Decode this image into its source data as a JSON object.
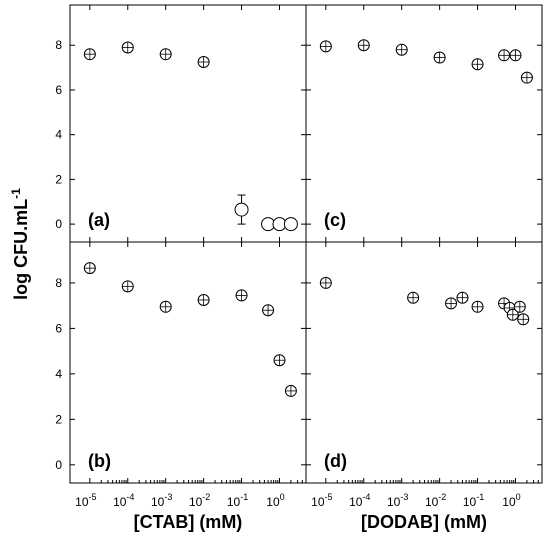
{
  "chart_data": {
    "type": "scatter",
    "ylabel": "log CFU.mL",
    "ylabel_superscript": "-1",
    "y_ticks": [
      0,
      2,
      4,
      6,
      8
    ],
    "ylim": [
      -0.8,
      9.8
    ],
    "xscale": "log",
    "xlim": [
      3e-06,
      5
    ],
    "x_tick_exponents": [
      "-5",
      "-4",
      "-3",
      "-2",
      "-1",
      "0"
    ],
    "x_tick_base": "10",
    "x_tick_last": "10",
    "grid": false,
    "panels": [
      {
        "label": "(a)",
        "xlabel": "[CTAB] (mM)",
        "points": [
          {
            "x": 1e-05,
            "y": 7.6
          },
          {
            "x": 0.0001,
            "y": 7.9
          },
          {
            "x": 0.001,
            "y": 7.6
          },
          {
            "x": 0.01,
            "y": 7.25
          },
          {
            "x": 0.1,
            "y": 0.65,
            "err": 0.65,
            "marker": "open"
          },
          {
            "x": 0.5,
            "y": 0,
            "marker": "open"
          },
          {
            "x": 1,
            "y": 0,
            "marker": "open"
          },
          {
            "x": 2,
            "y": 0,
            "marker": "open"
          }
        ]
      },
      {
        "label": "(c)",
        "xlabel": "[DODAB] (mM)",
        "points": [
          {
            "x": 1e-05,
            "y": 7.95
          },
          {
            "x": 0.0001,
            "y": 8.0
          },
          {
            "x": 0.001,
            "y": 7.8
          },
          {
            "x": 0.01,
            "y": 7.45
          },
          {
            "x": 0.1,
            "y": 7.15
          },
          {
            "x": 0.5,
            "y": 7.55
          },
          {
            "x": 1,
            "y": 7.55
          },
          {
            "x": 2,
            "y": 6.55
          }
        ]
      },
      {
        "label": "(b)",
        "xlabel": "[CTAB] (mM)",
        "points": [
          {
            "x": 1e-05,
            "y": 8.65
          },
          {
            "x": 0.0001,
            "y": 7.85
          },
          {
            "x": 0.001,
            "y": 6.95
          },
          {
            "x": 0.01,
            "y": 7.25
          },
          {
            "x": 0.1,
            "y": 7.45
          },
          {
            "x": 0.5,
            "y": 6.8
          },
          {
            "x": 1,
            "y": 4.6
          },
          {
            "x": 2,
            "y": 3.25
          }
        ]
      },
      {
        "label": "(d)",
        "xlabel": "[DODAB] (mM)",
        "points": [
          {
            "x": 1e-05,
            "y": 8.0
          },
          {
            "x": 0.002,
            "y": 7.35
          },
          {
            "x": 0.02,
            "y": 7.1
          },
          {
            "x": 0.04,
            "y": 7.35
          },
          {
            "x": 0.1,
            "y": 6.95
          },
          {
            "x": 0.5,
            "y": 7.1
          },
          {
            "x": 0.7,
            "y": 6.9
          },
          {
            "x": 0.85,
            "y": 6.6
          },
          {
            "x": 1.3,
            "y": 6.95
          },
          {
            "x": 1.6,
            "y": 6.4
          }
        ]
      }
    ]
  }
}
